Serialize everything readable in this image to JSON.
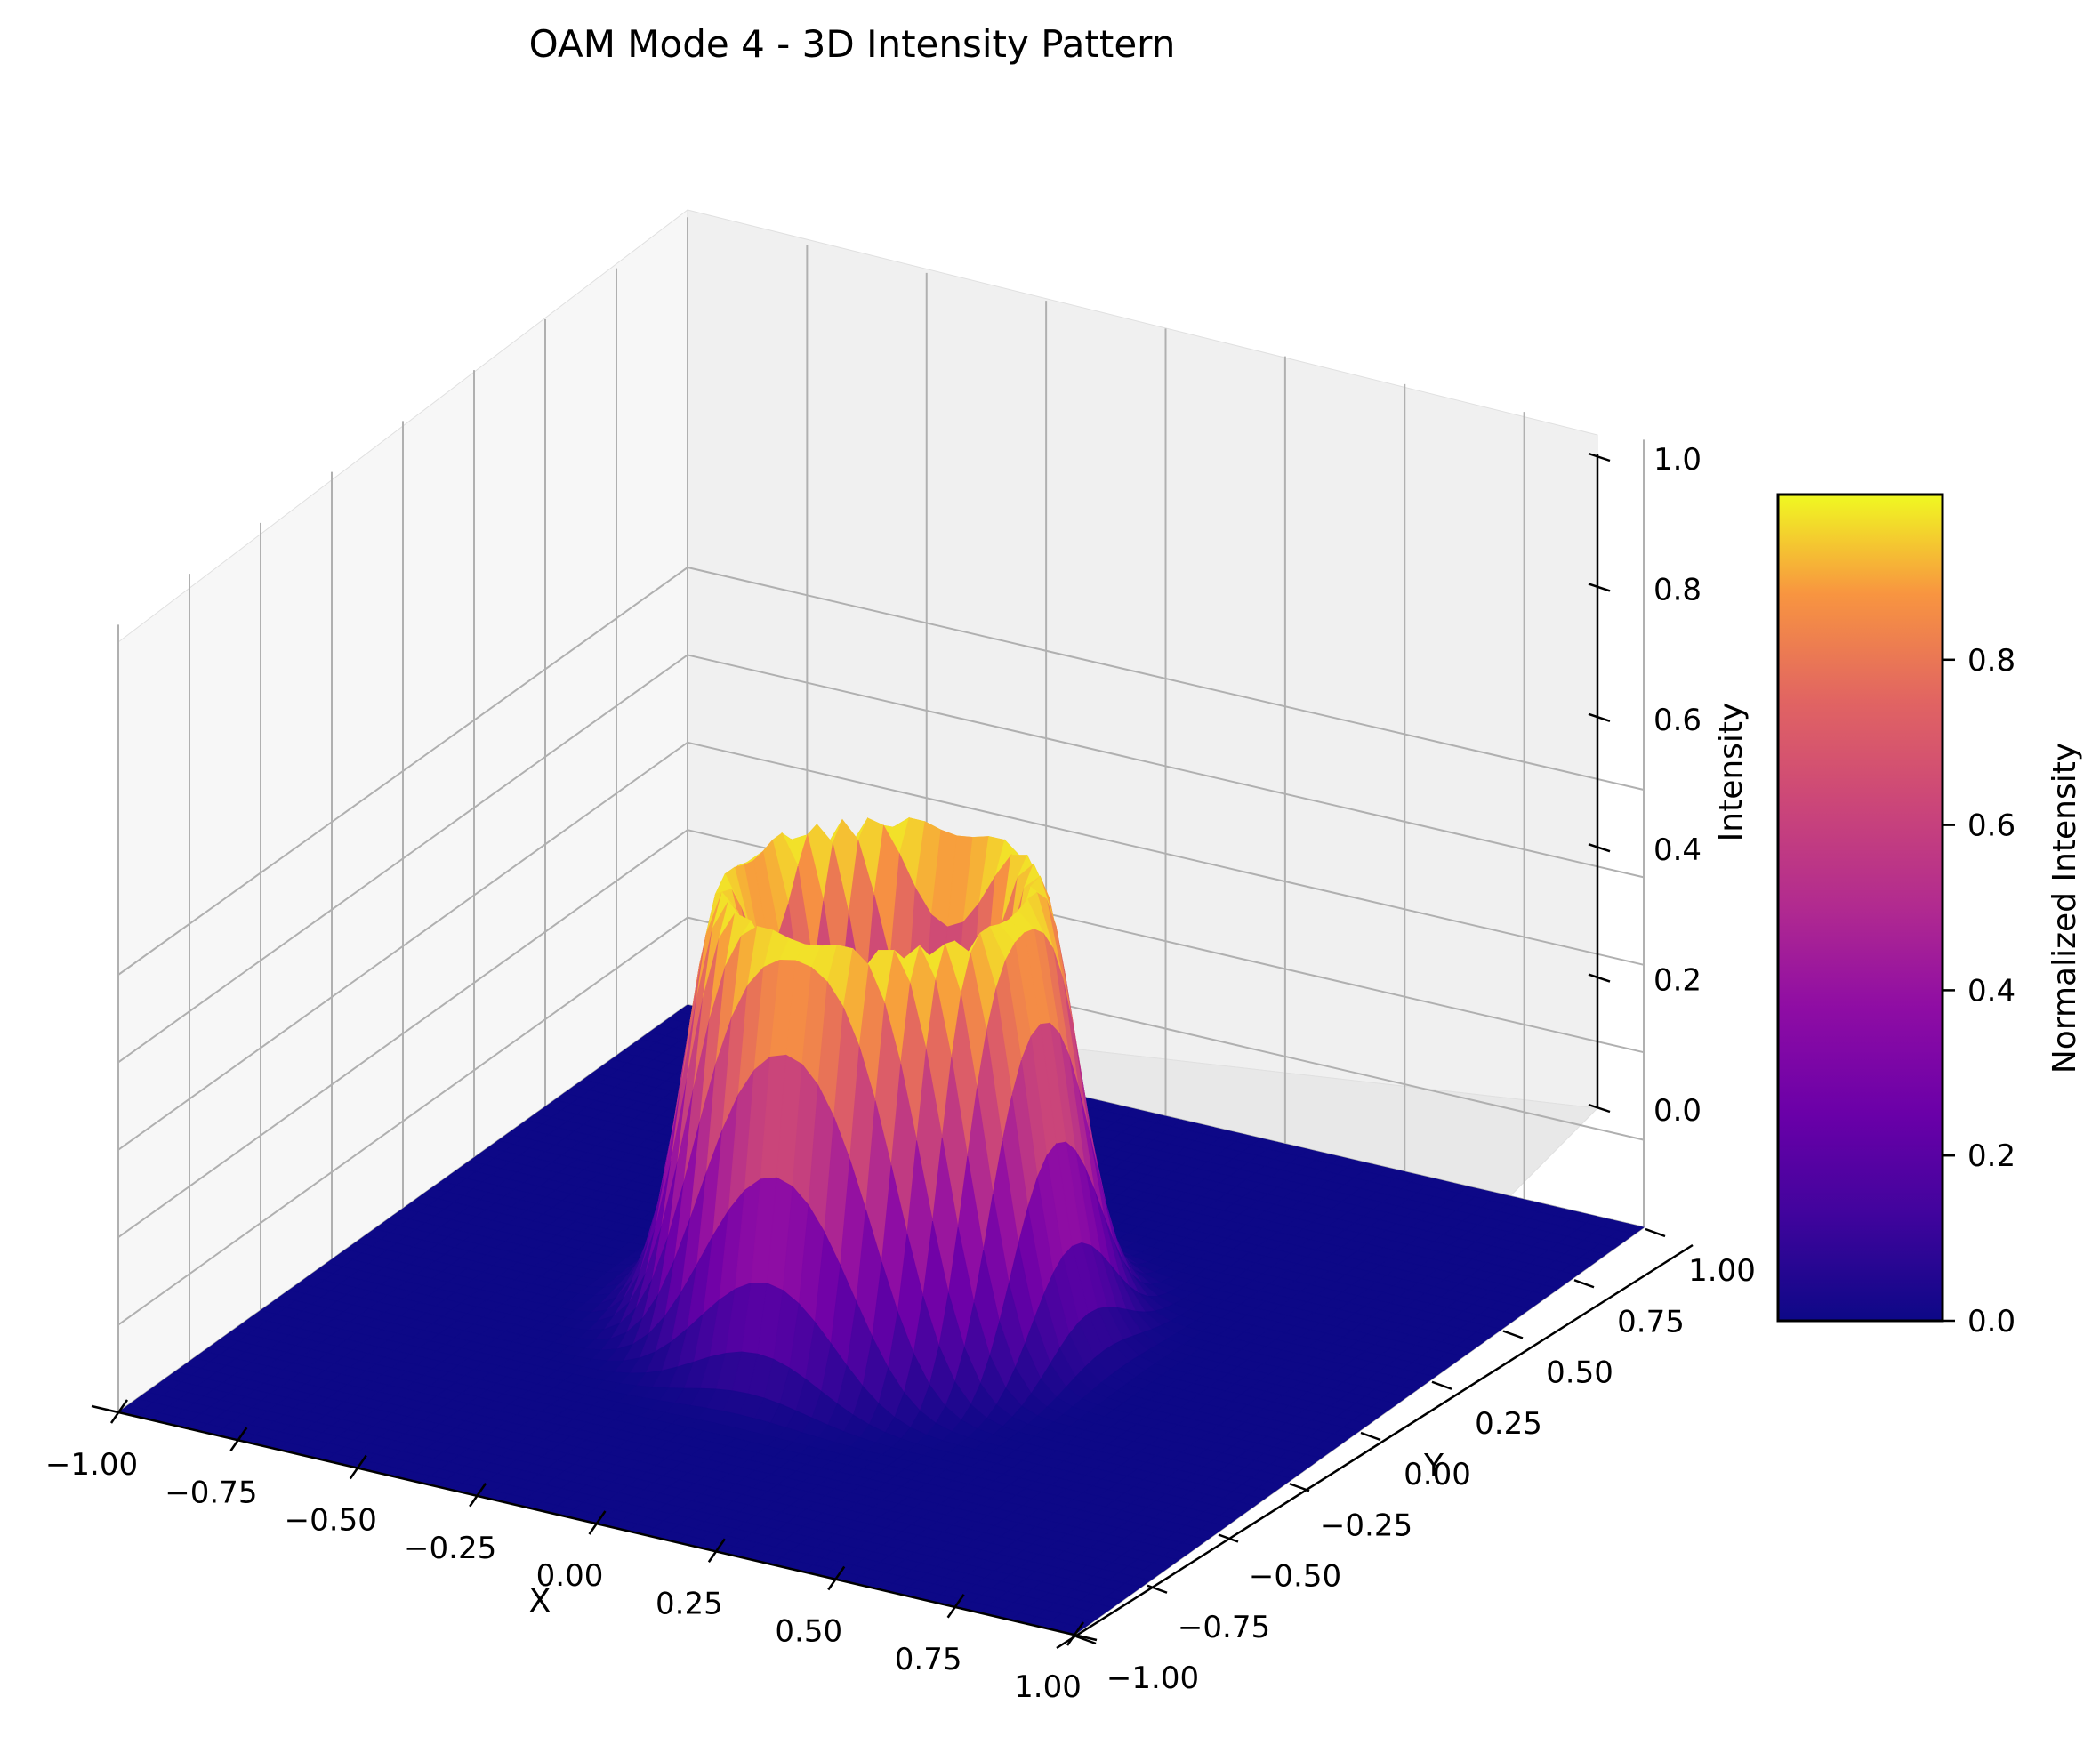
{
  "chart_data": {
    "type": "surface3d",
    "title": "OAM Mode 4 - 3D Intensity Pattern",
    "xlabel": "X",
    "ylabel": "Y",
    "zlabel": "Intensity",
    "colorbar_label": "Normalized Intensity",
    "colormap": "plasma",
    "x_range": [
      -1.0,
      1.0
    ],
    "y_range": [
      -1.0,
      1.0
    ],
    "z_range": [
      0.0,
      1.0
    ],
    "x_ticks": [
      -1.0,
      -0.75,
      -0.5,
      -0.25,
      0.0,
      0.25,
      0.5,
      0.75,
      1.0
    ],
    "x_tick_labels": [
      "−1.00",
      "−0.75",
      "−0.50",
      "−0.25",
      "0.00",
      "0.25",
      "0.50",
      "0.75",
      "1.00"
    ],
    "y_ticks": [
      -1.0,
      -0.75,
      -0.5,
      -0.25,
      0.0,
      0.25,
      0.5,
      0.75,
      1.0
    ],
    "y_tick_labels": [
      "−1.00",
      "−0.75",
      "−0.50",
      "−0.25",
      "0.00",
      "0.25",
      "0.50",
      "0.75",
      "1.00"
    ],
    "z_ticks": [
      0.0,
      0.2,
      0.4,
      0.6,
      0.8,
      1.0
    ],
    "z_tick_labels": [
      "0.0",
      "0.2",
      "0.4",
      "0.6",
      "0.8",
      "1.0"
    ],
    "colorbar_ticks": [
      0.0,
      0.2,
      0.4,
      0.6,
      0.8
    ],
    "colorbar_tick_labels": [
      "0.0",
      "0.2",
      "0.4",
      "0.6",
      "0.8"
    ],
    "colorbar_range": [
      0.0,
      1.0
    ],
    "grid": true,
    "surface": {
      "description_of_shape": "ring",
      "mode_l": 4,
      "peak_radius": 0.28,
      "peak_value": 1.0
    },
    "colors": {
      "low": "#0d0887",
      "mid": "#cc4778",
      "high": "#f0f921",
      "pane": "#f2f2f2",
      "grid": "#b0b0b0"
    }
  }
}
